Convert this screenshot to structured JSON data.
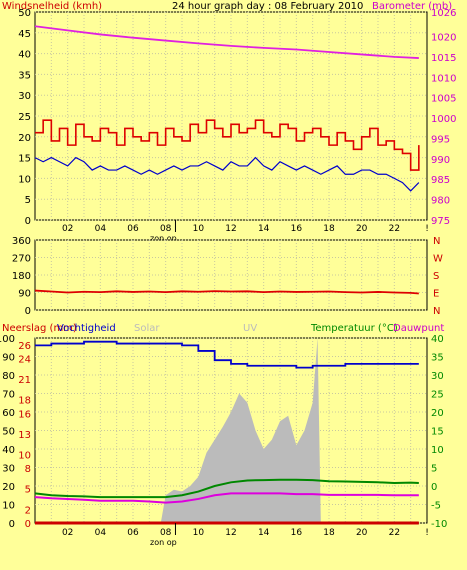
{
  "chart_data": [
    {
      "type": "line",
      "title": "24 hour graph day : 08 February 2010",
      "left_axis_label": "Windsnelheid (kmh)",
      "right_axis_label": "Barometer (mb)",
      "x_tick_labels": [
        "02",
        "04",
        "06",
        "08",
        "10",
        "12",
        "14",
        "16",
        "18",
        "20",
        "22",
        "!"
      ],
      "sunrise_label": "zon op",
      "y_left": {
        "min": 0,
        "max": 50,
        "ticks": [
          0,
          5,
          10,
          15,
          20,
          25,
          30,
          35,
          40,
          45,
          50
        ]
      },
      "y_right": {
        "min": 975,
        "max": 1026,
        "ticks": [
          975,
          980,
          985,
          990,
          995,
          1000,
          1005,
          1010,
          1015,
          1020,
          1026
        ]
      },
      "series": [
        {
          "axis": "right",
          "color": "#e020e0",
          "x": [
            0,
            2,
            4,
            6,
            8,
            10,
            12,
            14,
            16,
            18,
            20,
            22,
            23.5
          ],
          "values": [
            1022.5,
            1021.5,
            1020.5,
            1019.7,
            1019.0,
            1018.3,
            1017.7,
            1017.2,
            1016.8,
            1016.2,
            1015.6,
            1015.0,
            1014.7
          ]
        },
        {
          "axis": "left",
          "color": "#dd0000",
          "x": [
            0,
            0.5,
            1,
            1.5,
            2,
            2.5,
            3,
            3.5,
            4,
            4.5,
            5,
            5.5,
            6,
            6.5,
            7,
            7.5,
            8,
            8.5,
            9,
            9.5,
            10,
            10.5,
            11,
            11.5,
            12,
            12.5,
            13,
            13.5,
            14,
            14.5,
            15,
            15.5,
            16,
            16.5,
            17,
            17.5,
            18,
            18.5,
            19,
            19.5,
            20,
            20.5,
            21,
            21.5,
            22,
            22.5,
            23,
            23.5
          ],
          "values": [
            21,
            24,
            19,
            22,
            18,
            23,
            20,
            19,
            22,
            21,
            18,
            22,
            20,
            19,
            21,
            18,
            22,
            20,
            19,
            23,
            21,
            24,
            22,
            20,
            23,
            21,
            22,
            24,
            21,
            20,
            23,
            22,
            19,
            21,
            22,
            20,
            18,
            21,
            19,
            17,
            20,
            22,
            18,
            19,
            17,
            16,
            12,
            18
          ]
        },
        {
          "axis": "left",
          "color": "#0000cc",
          "x": [
            0,
            0.5,
            1,
            1.5,
            2,
            2.5,
            3,
            3.5,
            4,
            4.5,
            5,
            5.5,
            6,
            6.5,
            7,
            7.5,
            8,
            8.5,
            9,
            9.5,
            10,
            10.5,
            11,
            11.5,
            12,
            12.5,
            13,
            13.5,
            14,
            14.5,
            15,
            15.5,
            16,
            16.5,
            17,
            17.5,
            18,
            18.5,
            19,
            19.5,
            20,
            20.5,
            21,
            21.5,
            22,
            22.5,
            23,
            23.5
          ],
          "values": [
            15,
            14,
            15,
            14,
            13,
            15,
            14,
            12,
            13,
            12,
            12,
            13,
            12,
            11,
            12,
            11,
            12,
            13,
            12,
            13,
            13,
            14,
            13,
            12,
            14,
            13,
            13,
            15,
            13,
            12,
            14,
            13,
            12,
            13,
            12,
            11,
            12,
            13,
            11,
            11,
            12,
            12,
            11,
            11,
            10,
            9,
            7,
            9
          ]
        }
      ]
    },
    {
      "type": "line",
      "y_left": {
        "min": 0,
        "max": 360,
        "ticks": [
          0,
          90,
          180,
          270,
          360
        ]
      },
      "right_labels": [
        "N",
        "W",
        "S",
        "E",
        "N"
      ],
      "series": [
        {
          "axis": "left",
          "color": "#dd0000",
          "x": [
            0,
            1,
            2,
            3,
            4,
            5,
            6,
            7,
            8,
            9,
            10,
            11,
            12,
            13,
            14,
            15,
            16,
            17,
            18,
            19,
            20,
            21,
            22,
            23,
            23.5
          ],
          "values": [
            100,
            95,
            90,
            94,
            92,
            96,
            93,
            95,
            92,
            96,
            94,
            97,
            95,
            96,
            92,
            95,
            93,
            94,
            95,
            92,
            90,
            93,
            90,
            88,
            85
          ]
        }
      ]
    },
    {
      "type": "line",
      "legend_left": [
        "Neerslag (mm)",
        "Vochtigheid"
      ],
      "legend_center": [
        "Solar",
        "UV"
      ],
      "legend_right": [
        "Temperatuur (°C)",
        "Dauwpunt"
      ],
      "x_tick_labels": [
        "02",
        "04",
        "06",
        "08",
        "10",
        "12",
        "14",
        "16",
        "18",
        "20",
        "22",
        "!"
      ],
      "sunrise_label": "zon op",
      "y_left": {
        "min": 0,
        "max": 100,
        "ticks": [
          0,
          10,
          20,
          30,
          40,
          50,
          60,
          70,
          80,
          90,
          100
        ]
      },
      "y_left_inner": {
        "min": 0,
        "max": 27,
        "ticks": [
          0,
          2,
          5,
          8,
          10,
          13,
          16,
          18,
          21,
          24,
          26
        ]
      },
      "y_right": {
        "min": -10,
        "max": 40,
        "ticks": [
          -10,
          -5,
          0,
          5,
          10,
          15,
          20,
          25,
          30,
          35,
          40
        ]
      },
      "series": [
        {
          "name": "Vochtigheid",
          "axis": "left",
          "color": "#0000cc",
          "x": [
            0,
            1,
            2,
            3,
            4,
            5,
            6,
            7,
            8,
            9,
            10,
            11,
            12,
            13,
            14,
            15,
            16,
            17,
            18,
            19,
            20,
            21,
            22,
            23,
            23.5
          ],
          "values": [
            96,
            97,
            97,
            98,
            98,
            97,
            97,
            97,
            97,
            96,
            93,
            88,
            86,
            85,
            85,
            85,
            84,
            85,
            85,
            86,
            86,
            86,
            86,
            86,
            86
          ]
        },
        {
          "name": "Solar",
          "axis": "left",
          "color": "#bbbbbb",
          "x": [
            7.7,
            8,
            8.5,
            9,
            9.5,
            10,
            10.5,
            11,
            11.5,
            12,
            12.5,
            13,
            13.5,
            14,
            14.5,
            15,
            15.5,
            16,
            16.5,
            17,
            17.3,
            17.5
          ],
          "values": [
            0,
            15,
            18,
            17,
            20,
            25,
            38,
            45,
            52,
            60,
            70,
            65,
            50,
            40,
            45,
            55,
            58,
            42,
            50,
            65,
            100,
            0
          ]
        },
        {
          "name": "Temperatuur",
          "axis": "right",
          "color": "#008800",
          "x": [
            0,
            1,
            2,
            3,
            4,
            5,
            6,
            7,
            8,
            9,
            10,
            11,
            12,
            13,
            14,
            15,
            16,
            17,
            18,
            19,
            20,
            21,
            22,
            23,
            23.5
          ],
          "values": [
            -2,
            -2.5,
            -2.7,
            -2.8,
            -3,
            -3,
            -3,
            -3,
            -3,
            -2.5,
            -1.5,
            0,
            1,
            1.5,
            1.6,
            1.7,
            1.7,
            1.6,
            1.3,
            1.2,
            1.1,
            1.0,
            0.8,
            0.9,
            0.8
          ]
        },
        {
          "name": "Dauwpunt",
          "axis": "right",
          "color": "#dd00dd",
          "x": [
            0,
            1,
            2,
            3,
            4,
            5,
            6,
            7,
            8,
            9,
            10,
            11,
            12,
            13,
            14,
            15,
            16,
            17,
            18,
            19,
            20,
            21,
            22,
            23,
            23.5
          ],
          "values": [
            -3,
            -3.3,
            -3.5,
            -3.7,
            -4,
            -4,
            -4,
            -4.2,
            -4.5,
            -4.2,
            -3.5,
            -2.5,
            -2,
            -2,
            -2,
            -2,
            -2.2,
            -2.2,
            -2.4,
            -2.4,
            -2.4,
            -2.4,
            -2.5,
            -2.5,
            -2.5
          ]
        },
        {
          "name": "Neerslag",
          "axis": "left_inner",
          "color": "#cc0000",
          "x": [
            0,
            23.5
          ],
          "values": [
            0,
            0
          ]
        }
      ]
    }
  ]
}
